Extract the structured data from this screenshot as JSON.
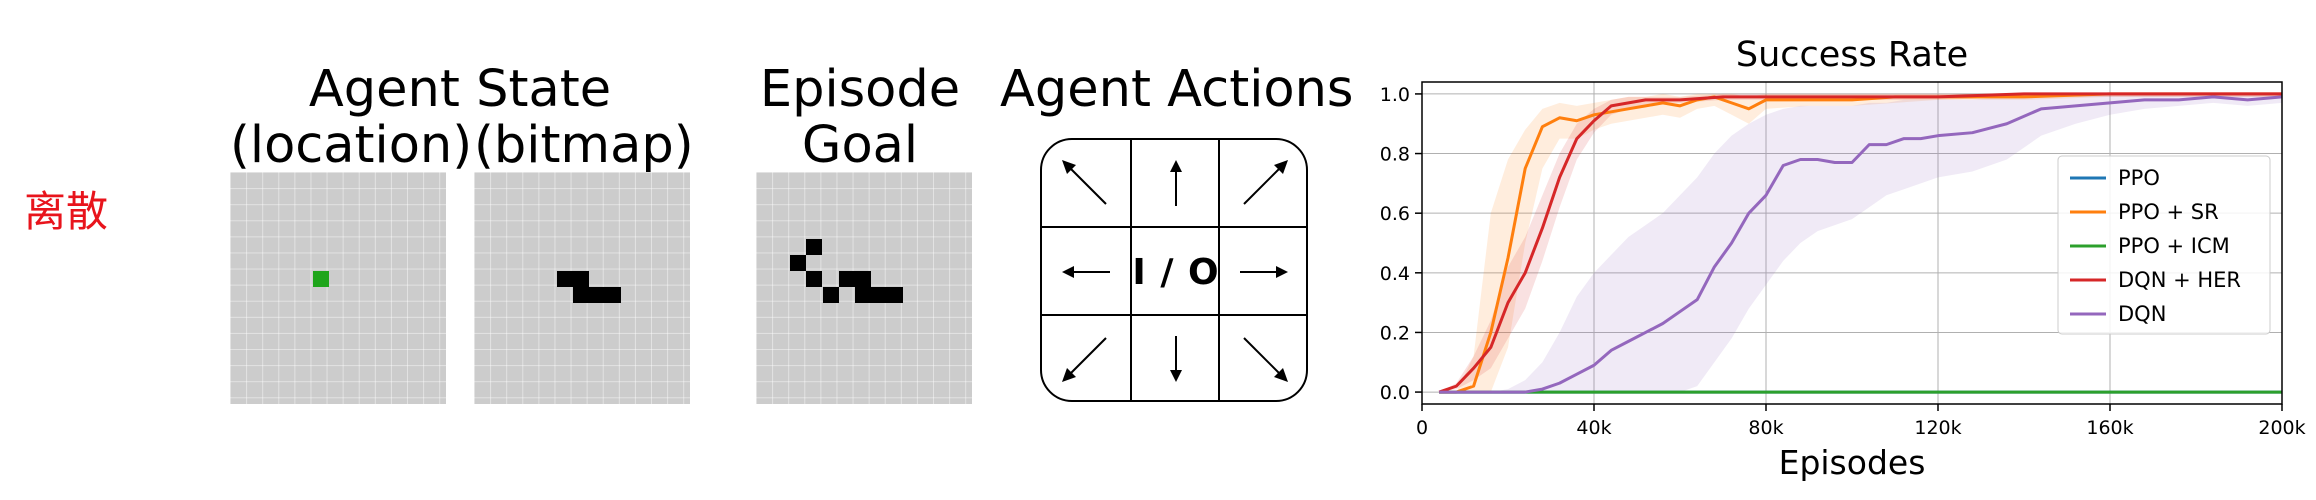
{
  "side_label": "离散",
  "panels": {
    "agent_state_title": "Agent State",
    "location_label": "(location)",
    "bitmap_label": "(bitmap)",
    "goal_title_line1": "Episode",
    "goal_title_line2": "Goal",
    "actions_title": "Agent Actions",
    "io_label": "I / O",
    "location_color": "#1fa51b",
    "grid_color": "#cccccc"
  },
  "chart_data": {
    "type": "line",
    "title": "Success Rate",
    "xlabel": "Episodes",
    "ylabel": "",
    "xlim": [
      0,
      200000
    ],
    "ylim": [
      -0.04,
      1.04
    ],
    "xticks": [
      0,
      40000,
      80000,
      120000,
      160000,
      200000
    ],
    "xtick_labels": [
      "0",
      "40k",
      "80k",
      "120k",
      "160k",
      "200k"
    ],
    "yticks": [
      0.0,
      0.2,
      0.4,
      0.6,
      0.8,
      1.0
    ],
    "ytick_labels": [
      "0.0",
      "0.2",
      "0.4",
      "0.6",
      "0.8",
      "1.0"
    ],
    "grid": true,
    "legend_position": "center-right",
    "series": [
      {
        "name": "PPO",
        "color": "#1f77b4",
        "x": [
          4000,
          200000
        ],
        "y": [
          0.0,
          0.0
        ]
      },
      {
        "name": "PPO + SR",
        "color": "#ff7f0e",
        "x": [
          4000,
          8000,
          12000,
          16000,
          20000,
          24000,
          28000,
          32000,
          36000,
          40000,
          44000,
          48000,
          52000,
          56000,
          60000,
          64000,
          68000,
          72000,
          76000,
          80000,
          90000,
          100000,
          110000,
          120000,
          140000,
          160000,
          180000,
          200000
        ],
        "y": [
          0.0,
          0.0,
          0.02,
          0.2,
          0.45,
          0.75,
          0.89,
          0.92,
          0.91,
          0.93,
          0.94,
          0.95,
          0.96,
          0.97,
          0.96,
          0.98,
          0.99,
          0.97,
          0.95,
          0.98,
          0.98,
          0.98,
          0.99,
          0.99,
          0.99,
          1.0,
          1.0,
          1.0
        ],
        "band_upper": [
          0.0,
          0.0,
          0.12,
          0.6,
          0.78,
          0.88,
          0.95,
          0.97,
          0.96,
          0.97,
          0.98,
          0.99,
          0.99,
          1.0,
          0.99,
          1.0,
          1.0,
          1.0,
          0.99,
          1.0,
          1.0,
          1.0,
          1.0,
          1.0,
          1.0,
          1.0,
          1.0,
          1.0
        ],
        "band_lower": [
          0.0,
          0.0,
          0.0,
          0.0,
          0.15,
          0.5,
          0.75,
          0.85,
          0.85,
          0.88,
          0.9,
          0.91,
          0.92,
          0.93,
          0.92,
          0.95,
          0.96,
          0.93,
          0.9,
          0.95,
          0.96,
          0.96,
          0.97,
          0.98,
          0.98,
          0.99,
          0.99,
          0.99
        ]
      },
      {
        "name": "PPO + ICM",
        "color": "#2ca02c",
        "x": [
          4000,
          200000
        ],
        "y": [
          0.0,
          0.0
        ]
      },
      {
        "name": "DQN + HER",
        "color": "#d62728",
        "x": [
          4000,
          8000,
          12000,
          16000,
          20000,
          24000,
          28000,
          32000,
          36000,
          40000,
          44000,
          48000,
          52000,
          56000,
          60000,
          70000,
          80000,
          90000,
          100000,
          120000,
          140000,
          160000,
          180000,
          200000
        ],
        "y": [
          0.0,
          0.02,
          0.08,
          0.15,
          0.3,
          0.4,
          0.55,
          0.72,
          0.85,
          0.91,
          0.96,
          0.97,
          0.98,
          0.98,
          0.98,
          0.99,
          0.99,
          0.99,
          0.99,
          0.99,
          1.0,
          1.0,
          1.0,
          1.0
        ],
        "band_upper": [
          0.0,
          0.03,
          0.12,
          0.24,
          0.42,
          0.52,
          0.66,
          0.8,
          0.9,
          0.95,
          0.98,
          0.99,
          0.99,
          0.99,
          0.99,
          1.0,
          1.0,
          1.0,
          1.0,
          1.0,
          1.0,
          1.0,
          1.0,
          1.0
        ],
        "band_lower": [
          0.0,
          0.01,
          0.04,
          0.08,
          0.18,
          0.28,
          0.44,
          0.62,
          0.78,
          0.87,
          0.93,
          0.95,
          0.96,
          0.97,
          0.97,
          0.98,
          0.98,
          0.98,
          0.98,
          0.98,
          0.99,
          0.99,
          0.99,
          0.99
        ]
      },
      {
        "name": "DQN",
        "color": "#9467bd",
        "x": [
          4000,
          8000,
          12000,
          16000,
          20000,
          24000,
          28000,
          32000,
          36000,
          40000,
          44000,
          48000,
          52000,
          56000,
          60000,
          64000,
          68000,
          72000,
          76000,
          80000,
          84000,
          88000,
          92000,
          96000,
          100000,
          104000,
          108000,
          112000,
          116000,
          120000,
          128000,
          136000,
          144000,
          152000,
          160000,
          168000,
          176000,
          184000,
          192000,
          200000
        ],
        "y": [
          0.0,
          0.0,
          0.0,
          0.0,
          0.0,
          0.0,
          0.01,
          0.03,
          0.06,
          0.09,
          0.14,
          0.17,
          0.2,
          0.23,
          0.27,
          0.31,
          0.42,
          0.5,
          0.6,
          0.66,
          0.76,
          0.78,
          0.78,
          0.77,
          0.77,
          0.83,
          0.83,
          0.85,
          0.85,
          0.86,
          0.87,
          0.9,
          0.95,
          0.96,
          0.97,
          0.98,
          0.98,
          0.99,
          0.98,
          0.99
        ],
        "band_upper": [
          0.0,
          0.0,
          0.0,
          0.0,
          0.01,
          0.04,
          0.1,
          0.2,
          0.32,
          0.4,
          0.46,
          0.52,
          0.56,
          0.6,
          0.66,
          0.72,
          0.8,
          0.86,
          0.9,
          0.93,
          0.95,
          0.96,
          0.96,
          0.96,
          0.96,
          0.97,
          0.97,
          0.98,
          0.98,
          0.98,
          0.98,
          0.99,
          0.99,
          0.99,
          1.0,
          1.0,
          1.0,
          1.0,
          1.0,
          1.0
        ],
        "band_lower": [
          0.0,
          0.0,
          0.0,
          0.0,
          0.0,
          0.0,
          0.0,
          0.0,
          0.0,
          0.0,
          0.0,
          0.0,
          0.0,
          0.0,
          0.0,
          0.02,
          0.1,
          0.18,
          0.28,
          0.36,
          0.44,
          0.5,
          0.54,
          0.56,
          0.58,
          0.62,
          0.66,
          0.68,
          0.7,
          0.72,
          0.74,
          0.78,
          0.86,
          0.9,
          0.93,
          0.95,
          0.96,
          0.97,
          0.96,
          0.97
        ]
      }
    ]
  }
}
